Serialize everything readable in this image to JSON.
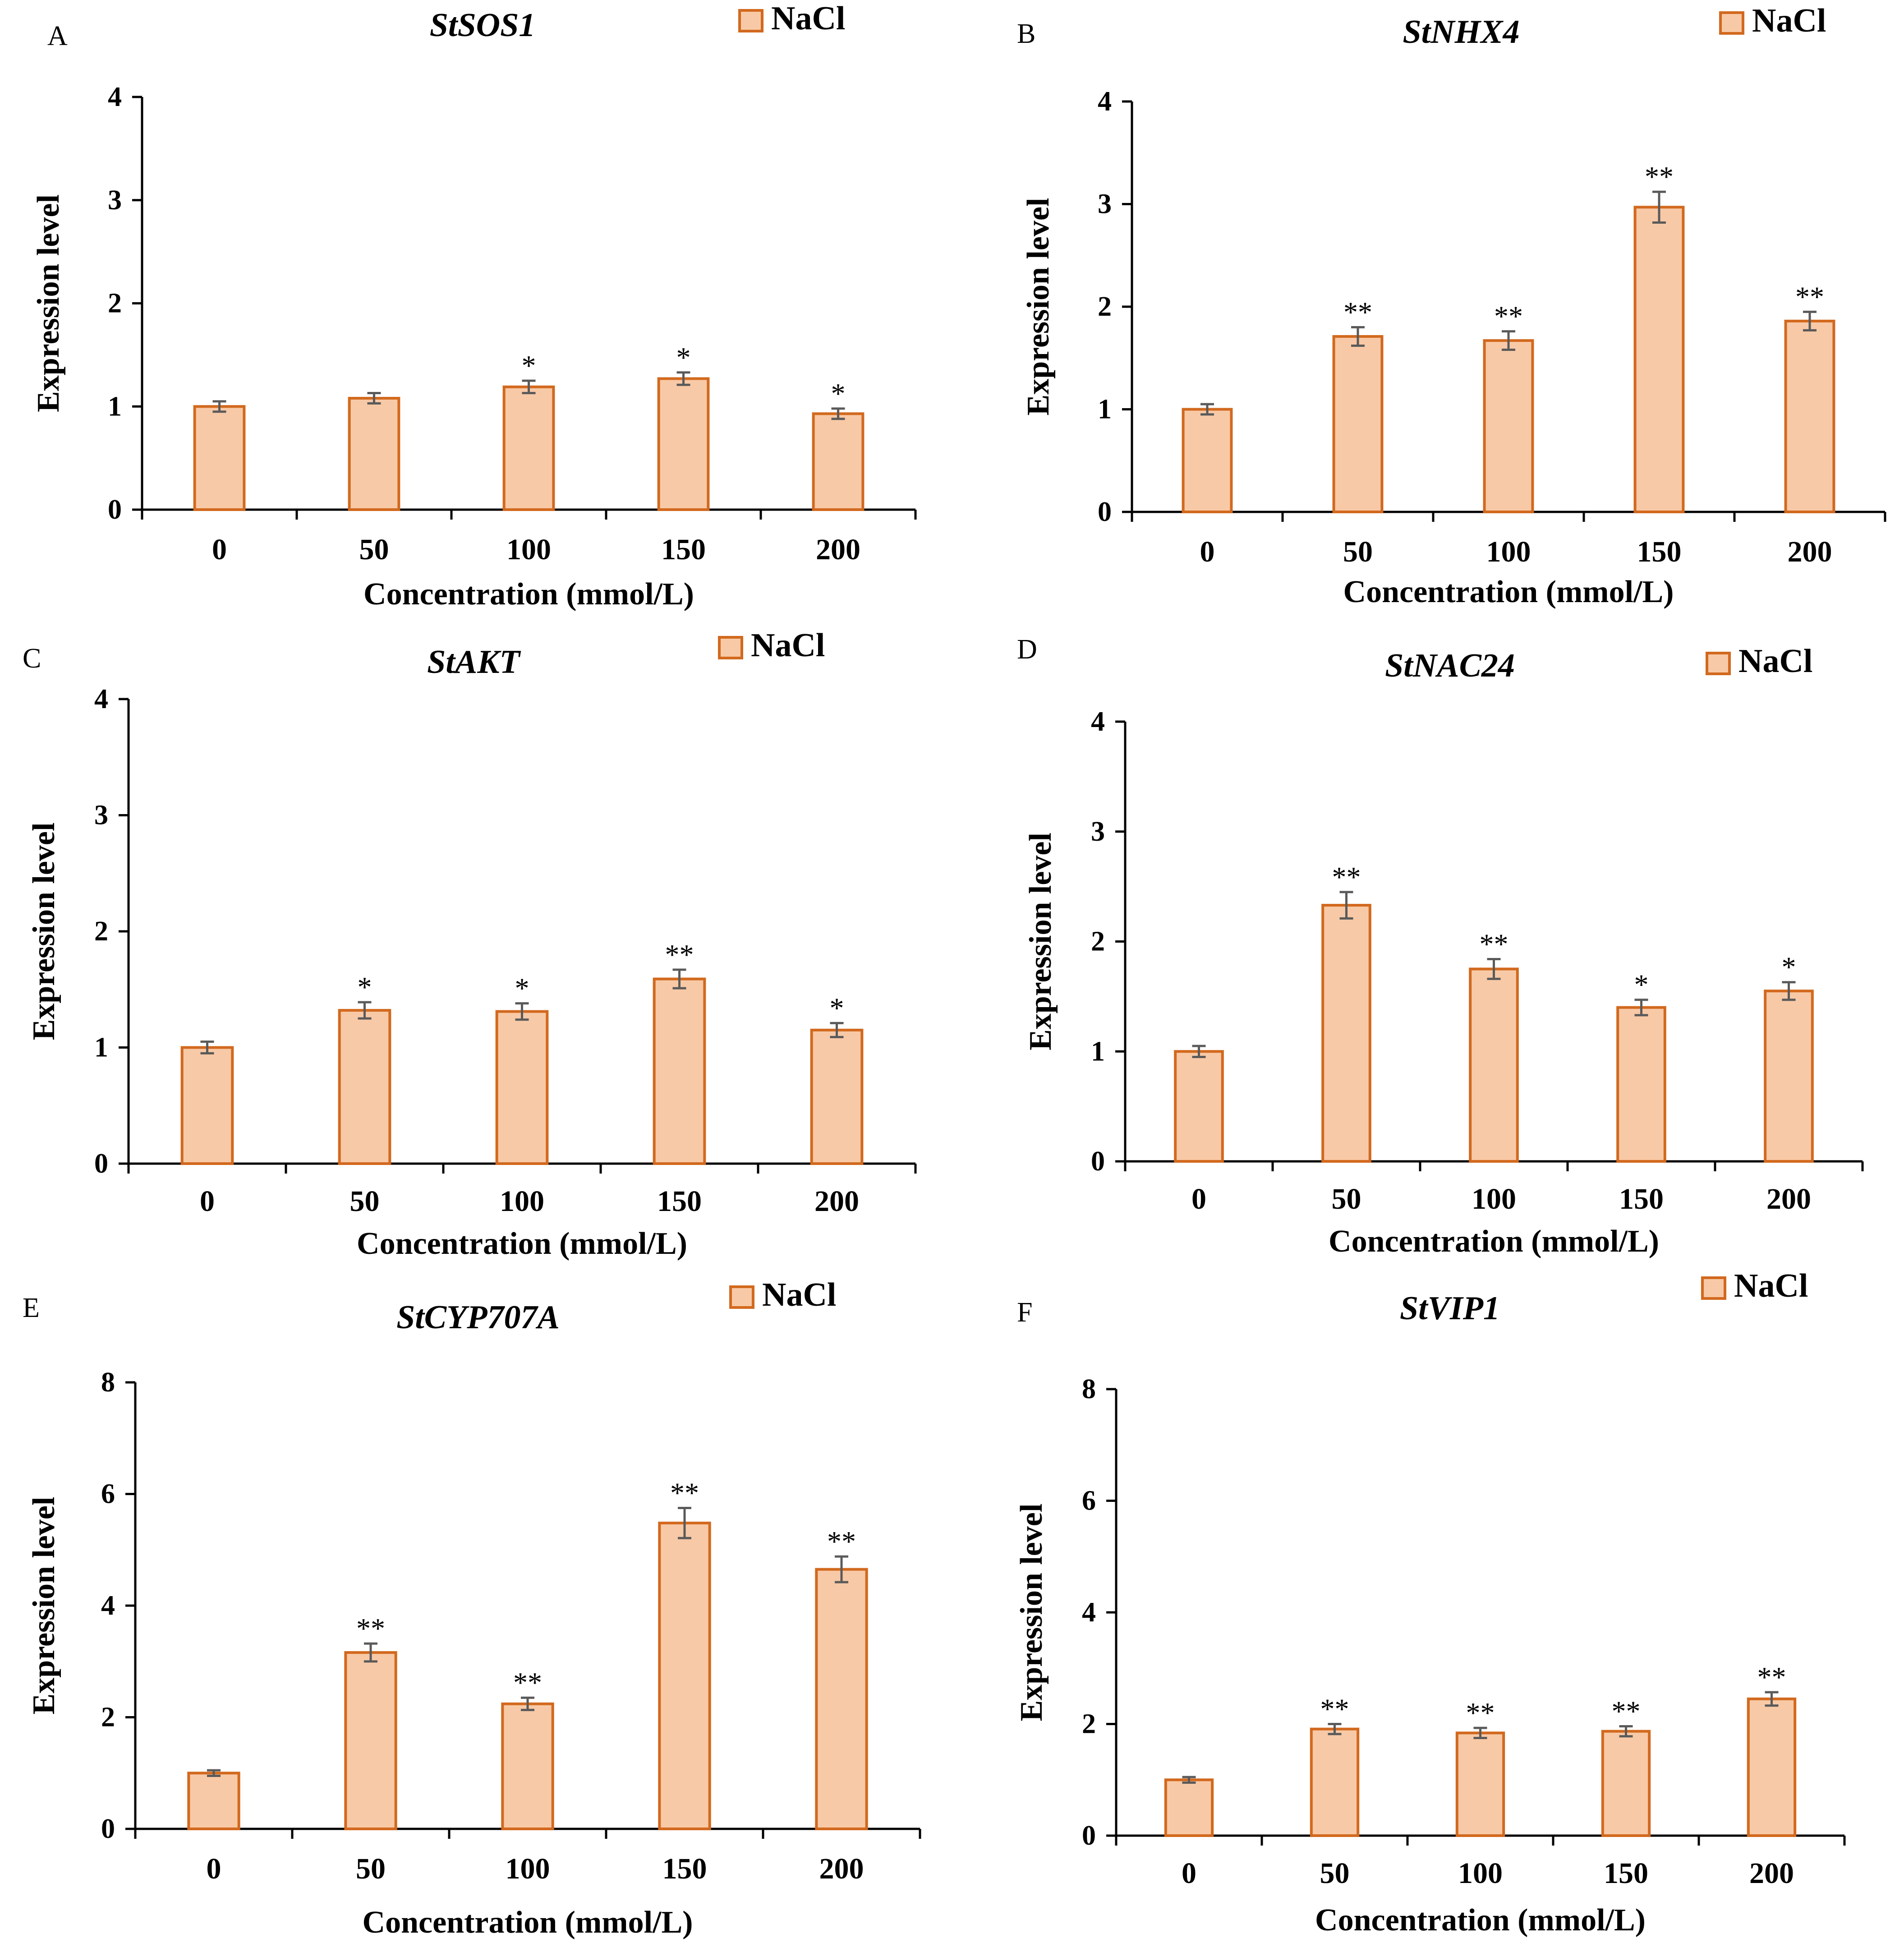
{
  "figure": {
    "colors": {
      "bar_fill": "#F8C9A6",
      "bar_stroke": "#D2691E",
      "axis": "#000000",
      "error_bar": "#5A5A5A"
    }
  },
  "chart_data": [
    {
      "panel": "A",
      "type": "bar",
      "title": "StSOS1",
      "legend": [
        "NaCl"
      ],
      "xlabel": "Concentration (mmol/L)",
      "ylabel": "Expression level",
      "categories": [
        "0",
        "50",
        "100",
        "150",
        "200"
      ],
      "values": [
        1.0,
        1.08,
        1.19,
        1.27,
        0.93
      ],
      "errors": [
        0.05,
        0.05,
        0.06,
        0.06,
        0.05
      ],
      "significance": [
        "",
        "",
        "*",
        "*",
        "*"
      ],
      "ylim": [
        0,
        4
      ],
      "yticks": [
        "0",
        "1",
        "2",
        "3",
        "4"
      ]
    },
    {
      "panel": "B",
      "type": "bar",
      "title": "StNHX4",
      "legend": [
        "NaCl"
      ],
      "xlabel": "Concentration (mmol/L)",
      "ylabel": "Expression level",
      "categories": [
        "0",
        "50",
        "100",
        "150",
        "200"
      ],
      "values": [
        1.0,
        1.71,
        1.67,
        2.97,
        1.86
      ],
      "errors": [
        0.05,
        0.09,
        0.09,
        0.15,
        0.09
      ],
      "significance": [
        "",
        "**",
        "**",
        "**",
        "**"
      ],
      "ylim": [
        0,
        4
      ],
      "yticks": [
        "0",
        "1",
        "2",
        "3",
        "4"
      ]
    },
    {
      "panel": "C",
      "type": "bar",
      "title": "StAKT",
      "legend": [
        "NaCl"
      ],
      "xlabel": "Concentration (mmol/L)",
      "ylabel": "Expression level",
      "categories": [
        "0",
        "50",
        "100",
        "150",
        "200"
      ],
      "values": [
        1.0,
        1.32,
        1.31,
        1.59,
        1.15
      ],
      "errors": [
        0.05,
        0.07,
        0.07,
        0.08,
        0.06
      ],
      "significance": [
        "",
        "*",
        "*",
        "**",
        "*"
      ],
      "ylim": [
        0,
        4
      ],
      "yticks": [
        "0",
        "1",
        "2",
        "3",
        "4"
      ]
    },
    {
      "panel": "D",
      "type": "bar",
      "title": "StNAC24",
      "legend": [
        "NaCl"
      ],
      "xlabel": "Concentration (mmol/L)",
      "ylabel": "Expression level",
      "categories": [
        "0",
        "50",
        "100",
        "150",
        "200"
      ],
      "values": [
        1.0,
        2.33,
        1.75,
        1.4,
        1.55
      ],
      "errors": [
        0.05,
        0.12,
        0.09,
        0.07,
        0.08
      ],
      "significance": [
        "",
        "**",
        "**",
        "*",
        "*"
      ],
      "ylim": [
        0,
        4
      ],
      "yticks": [
        "0",
        "1",
        "2",
        "3",
        "4"
      ]
    },
    {
      "panel": "E",
      "type": "bar",
      "title": "StCYP707A",
      "legend": [
        "NaCl"
      ],
      "xlabel": "Concentration (mmol/L)",
      "ylabel": "Expression level",
      "categories": [
        "0",
        "50",
        "100",
        "150",
        "200"
      ],
      "values": [
        1.0,
        3.16,
        2.24,
        5.48,
        4.65
      ],
      "errors": [
        0.05,
        0.16,
        0.11,
        0.27,
        0.23
      ],
      "significance": [
        "",
        "**",
        "**",
        "**",
        "**"
      ],
      "ylim": [
        0,
        8
      ],
      "yticks": [
        "0",
        "2",
        "4",
        "6",
        "8"
      ]
    },
    {
      "panel": "F",
      "type": "bar",
      "title": "StVIP1",
      "legend": [
        "NaCl"
      ],
      "xlabel": "Concentration (mmol/L)",
      "ylabel": "Expression level",
      "categories": [
        "0",
        "50",
        "100",
        "150",
        "200"
      ],
      "values": [
        1.0,
        1.91,
        1.84,
        1.87,
        2.45
      ],
      "errors": [
        0.05,
        0.09,
        0.09,
        0.09,
        0.12
      ],
      "significance": [
        "",
        "**",
        "**",
        "**",
        "**"
      ],
      "ylim": [
        0,
        8
      ],
      "yticks": [
        "0",
        "2",
        "4",
        "6",
        "8"
      ]
    }
  ]
}
